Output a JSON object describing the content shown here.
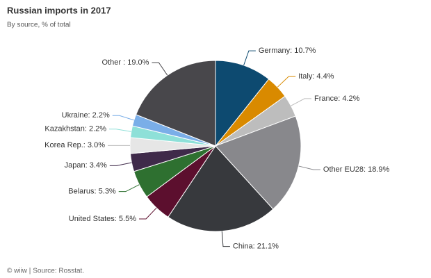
{
  "chart_data": {
    "type": "pie",
    "title": "Russian imports in 2017",
    "subtitle": "By source, % of total",
    "values": [
      10.7,
      4.4,
      4.2,
      18.9,
      21.1,
      5.5,
      5.3,
      3.4,
      3.0,
      2.2,
      2.2,
      19.0
    ],
    "value_labels": [
      "Germany: 10.7%",
      "Italy: 4.4%",
      "France: 4.2%",
      "Other EU28: 18.9%",
      "China: 21.1%",
      "United States: 5.5%",
      "Belarus: 5.3%",
      "Japan: 3.4%",
      "Korea Rep.: 3.0%",
      "Kazakhstan: 2.2%",
      "Ukraine: 2.2%",
      "Other : 19.0%"
    ],
    "colors": [
      "#0d4a70",
      "#d98a00",
      "#bdbdbd",
      "#88888c",
      "#37393d",
      "#5c0f2e",
      "#2e7030",
      "#3f2a4a",
      "#e6e6e6",
      "#8ee0d8",
      "#7aaee8",
      "#48474b"
    ],
    "source": "© wiiw | Source: Rosstat."
  }
}
